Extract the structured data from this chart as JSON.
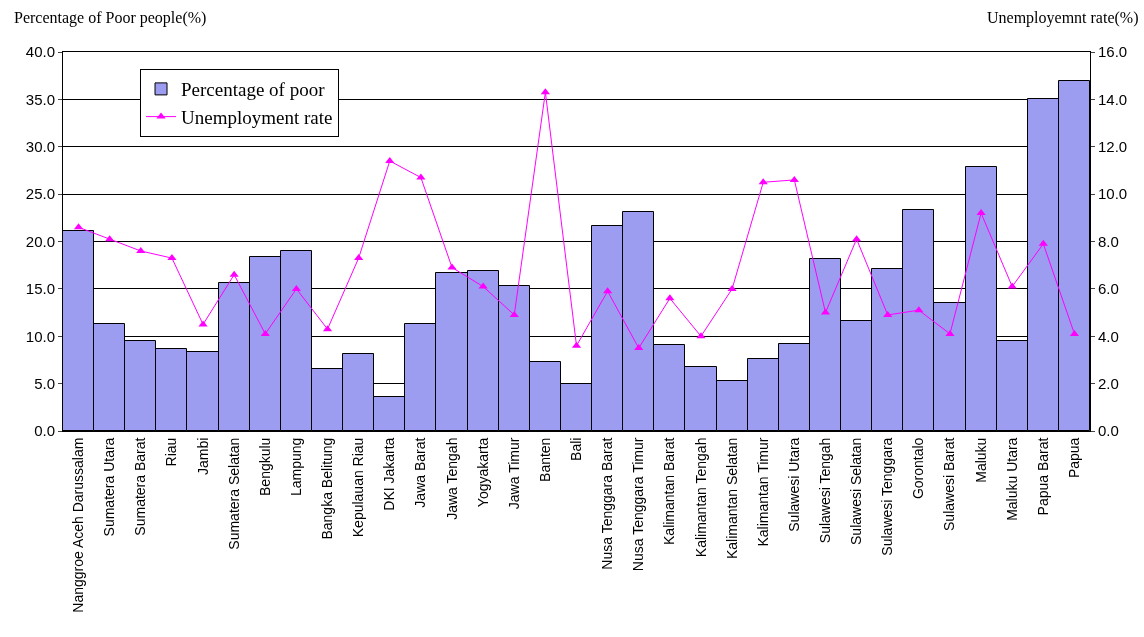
{
  "chart_data": {
    "type": "bar",
    "ylabel": "Percentage of Poor people(%)",
    "y2label": "Unemployemnt rate(%)",
    "categories": [
      "Nanggroe Aceh Darussalam",
      "Sumatera Utara",
      "Sumatera Barat",
      "Riau",
      "Jambi",
      "Sumatera Selatan",
      "Bengkulu",
      "Lampung",
      "Bangka Belitung",
      "Kepulauan Riau",
      "DKI Jakarta",
      "Jawa Barat",
      "Jawa Tengah",
      "Yogyakarta",
      "Jawa Timur",
      "Banten",
      "Bali",
      "Nusa Tenggara Barat",
      "Nusa Tenggara Timur",
      "Kalimantan Barat",
      "Kalimantan Tengah",
      "Kalimantan Selatan",
      "Kalimantan Timur",
      "Sulawesi Utara",
      "Sulawesi Tengah",
      "Sulawesi Selatan",
      "Sulawesi Tenggara",
      "Gorontalo",
      "Sulawesi Barat",
      "Maluku",
      "Maluku Utara",
      "Papua Barat",
      "Papua"
    ],
    "series": [
      {
        "name": "Percentage of poor",
        "color": "#9c9cf0",
        "values": [
          21.1,
          11.3,
          9.5,
          8.7,
          8.3,
          15.6,
          18.4,
          19.0,
          6.5,
          8.1,
          3.6,
          11.3,
          16.7,
          16.9,
          15.3,
          7.3,
          5.0,
          21.6,
          23.1,
          9.1,
          6.8,
          5.3,
          7.6,
          9.2,
          18.2,
          11.6,
          17.1,
          23.3,
          13.5,
          27.9,
          9.5,
          35.0,
          36.9
        ]
      },
      {
        "name": "Unemployment rate",
        "type": "line",
        "axis": "y2",
        "color": "#ff00ff",
        "marker": "triangle",
        "values": [
          8.6,
          8.1,
          7.6,
          7.3,
          4.5,
          6.6,
          4.1,
          6.0,
          4.3,
          7.3,
          11.4,
          10.7,
          6.9,
          6.1,
          4.9,
          14.3,
          3.6,
          5.9,
          3.5,
          5.6,
          4.0,
          6.0,
          10.5,
          10.6,
          5.0,
          8.1,
          4.9,
          5.1,
          4.1,
          9.2,
          6.1,
          7.9,
          4.1
        ]
      }
    ],
    "ylim": [
      0,
      40
    ],
    "yticks": [
      {
        "value": 0,
        "label": "0.0"
      },
      {
        "value": 5,
        "label": "5.0"
      },
      {
        "value": 10,
        "label": "10.0"
      },
      {
        "value": 15,
        "label": "15.0"
      },
      {
        "value": 20,
        "label": "20.0"
      },
      {
        "value": 25,
        "label": "25.0"
      },
      {
        "value": 30,
        "label": "30.0"
      },
      {
        "value": 35,
        "label": "35.0"
      },
      {
        "value": 40,
        "label": "40.0"
      }
    ],
    "y2lim": [
      0,
      16
    ],
    "y2ticks": [
      {
        "value": 0,
        "label": "0.0"
      },
      {
        "value": 2,
        "label": "2.0"
      },
      {
        "value": 4,
        "label": "4.0"
      },
      {
        "value": 6,
        "label": "6.0"
      },
      {
        "value": 8,
        "label": "8.0"
      },
      {
        "value": 10,
        "label": "10.0"
      },
      {
        "value": 12,
        "label": "12.0"
      },
      {
        "value": 14,
        "label": "14.0"
      },
      {
        "value": 16,
        "label": "16.0"
      }
    ],
    "grid": "y",
    "legend": "top left"
  }
}
